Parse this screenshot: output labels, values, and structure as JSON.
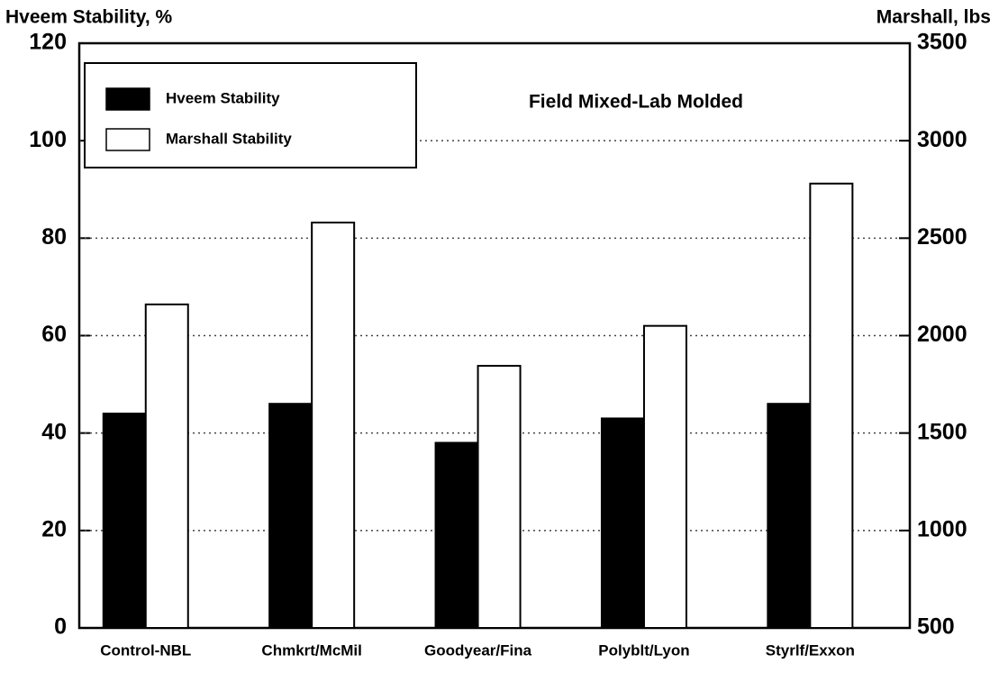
{
  "chart_data": {
    "type": "bar",
    "ylabel": "Hveem Stability, %",
    "y2label": "Marshall, lbs",
    "annotation": "Field Mixed-Lab Molded",
    "categories": [
      "Control-NBL",
      "Chmkrt/McMil",
      "Goodyear/Fina",
      "Polyblt/Lyon",
      "Styrlf/Exxon"
    ],
    "series": [
      {
        "name": "Hveem Stability",
        "color": "#000000",
        "values": [
          44,
          46,
          38,
          43,
          46
        ]
      },
      {
        "name": "Marshall Stability",
        "color": "#ffffff",
        "axis": "y2",
        "values": [
          2160,
          2580,
          1845,
          2050,
          2780
        ]
      }
    ],
    "ylim": [
      0,
      120
    ],
    "yticks": [
      0,
      20,
      40,
      60,
      80,
      100,
      120
    ],
    "y2lim": [
      500,
      3500
    ],
    "y2ticks": [
      500,
      1000,
      1500,
      2000,
      2500,
      3000,
      3500
    ],
    "grid": true,
    "legend": "upper left"
  }
}
